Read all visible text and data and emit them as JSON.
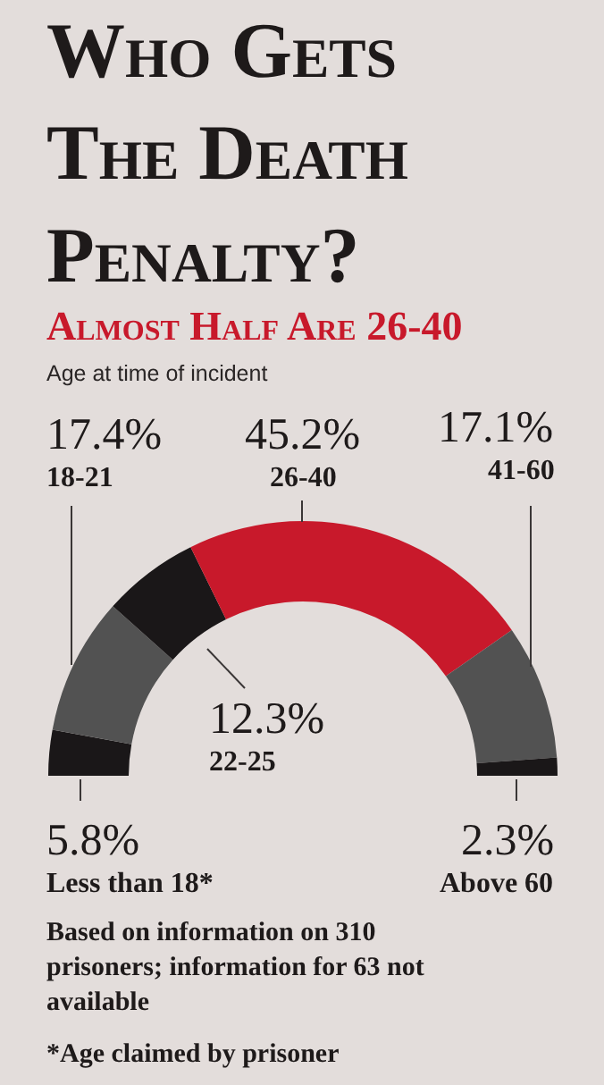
{
  "chart_data": {
    "type": "donut",
    "title": "Who Gets The Death Penalty?",
    "subtitle": "Almost Half Are 26-40",
    "annotations": [
      "Age at time of incident",
      "Based on information on 310 prisoners; information for 63 not available",
      "*Age claimed by prisoner"
    ],
    "categories": [
      "Less than 18*",
      "18-21",
      "22-25",
      "26-40",
      "41-60",
      "Above 60"
    ],
    "values": [
      5.8,
      17.4,
      12.3,
      45.2,
      17.1,
      2.3
    ],
    "value_labels": [
      "5.8%",
      "17.4%",
      "12.3%",
      "45.2%",
      "17.1%",
      "2.3%"
    ],
    "colors": [
      "#1a1718",
      "#525252",
      "#1a1718",
      "#c8192b",
      "#525252",
      "#1a1718"
    ],
    "legend": false
  }
}
